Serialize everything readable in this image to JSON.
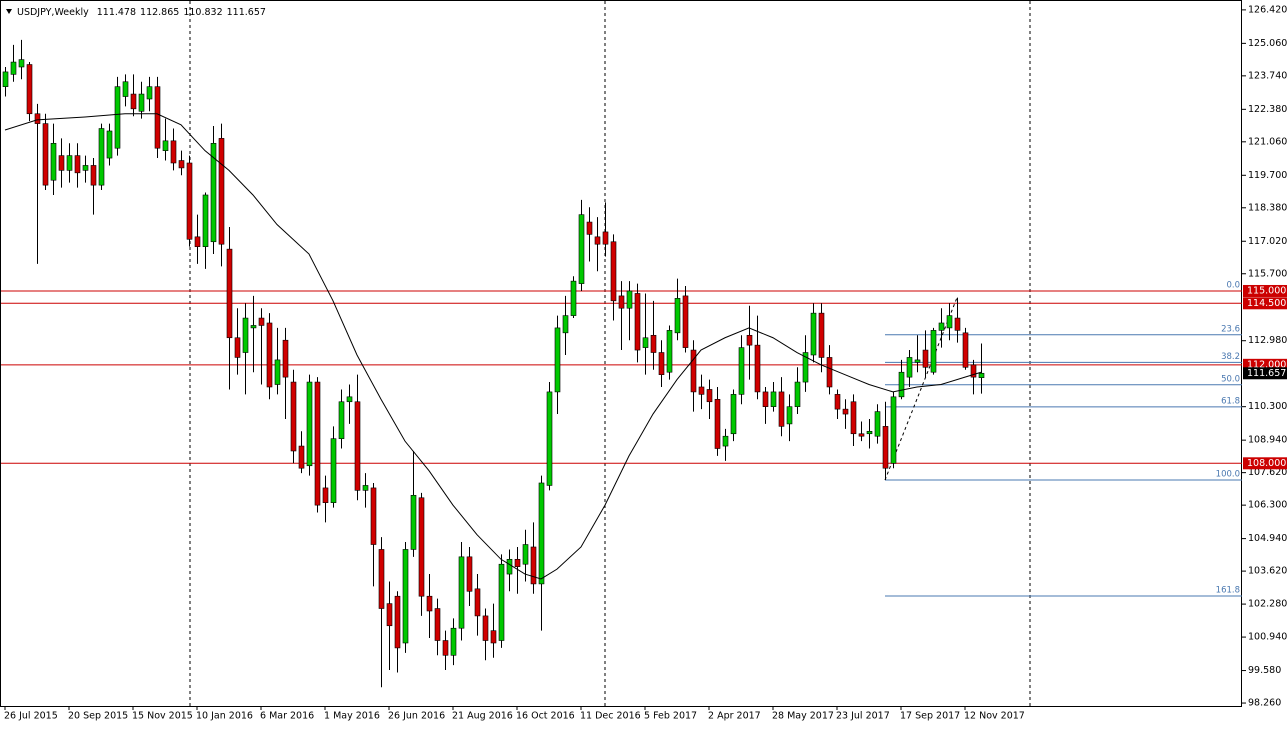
{
  "chart_data": {
    "type": "candlestick",
    "title": "USDJPY,Weekly",
    "categories": [
      "26 Jul 2015",
      null,
      null,
      null,
      null,
      null,
      null,
      null,
      "20 Sep 2015",
      null,
      null,
      null,
      null,
      null,
      null,
      null,
      "15 Nov 2015",
      null,
      null,
      null,
      null,
      null,
      null,
      null,
      "10 Jan 2016",
      null,
      null,
      null,
      null,
      null,
      null,
      null,
      "6 Mar 2016",
      null,
      null,
      null,
      null,
      null,
      null,
      null,
      "1 May 2016",
      null,
      null,
      null,
      null,
      null,
      null,
      null,
      "26 Jun 2016",
      null,
      null,
      null,
      null,
      null,
      null,
      null,
      "21 Aug 2016",
      null,
      null,
      null,
      null,
      null,
      null,
      null,
      "16 Oct 2016",
      null,
      null,
      null,
      null,
      null,
      null,
      null,
      "11 Dec 2016",
      null,
      null,
      null,
      null,
      null,
      null,
      null,
      "5 Feb 2017",
      null,
      null,
      null,
      null,
      null,
      null,
      null,
      "2 Apr 2017",
      null,
      null,
      null,
      null,
      null,
      null,
      null,
      "28 May 2017",
      null,
      null,
      null,
      null,
      null,
      null,
      null,
      "23 Jul 2017",
      null,
      null,
      null,
      null,
      null,
      null,
      null,
      "17 Sep 2017",
      null,
      null,
      null,
      null,
      null,
      null,
      null,
      "12 Nov 2017",
      null,
      null
    ],
    "open": [
      123.3,
      123.8,
      124.1,
      124.2,
      122.2,
      121.8,
      119.5,
      120.5,
      119.9,
      120.5,
      119.9,
      120.1,
      119.3,
      120.4,
      120.8,
      122.9,
      123.0,
      122.3,
      122.8,
      123.3,
      120.7,
      121.1,
      120.3,
      120.2,
      117.2,
      116.8,
      117.0,
      121.2,
      116.7,
      113.1,
      112.5,
      113.5,
      113.9,
      113.7,
      111.2,
      113.0,
      111.3,
      108.7,
      107.9,
      111.3,
      107.0,
      106.4,
      109.0,
      110.5,
      110.5,
      106.9,
      107.0,
      104.5,
      102.3,
      102.6,
      100.7,
      104.5,
      106.6,
      102.6,
      102.1,
      100.8,
      100.2,
      101.3,
      104.2,
      102.9,
      101.8,
      101.2,
      100.8,
      103.5,
      104.1,
      103.9,
      104.6,
      103.1,
      107.1,
      110.9,
      113.3,
      114.0,
      115.3,
      117.8,
      117.2,
      117.4,
      117.0,
      114.8,
      114.3,
      114.9,
      112.7,
      113.2,
      112.5,
      111.7,
      113.3,
      114.8,
      112.6,
      111.1,
      111.0,
      110.6,
      108.7,
      109.2,
      110.8,
      113.2,
      112.8,
      110.9,
      110.3,
      110.9,
      109.6,
      110.3,
      111.3,
      112.4,
      114.1,
      112.3,
      110.8,
      110.2,
      110.5,
      109.2,
      109.2,
      109.1,
      109.5,
      108.0,
      110.7,
      111.5,
      112.1,
      112.6,
      111.7,
      113.4,
      113.5,
      113.9,
      113.3,
      112.0,
      111.478
    ],
    "high": [
      124.1,
      125.0,
      125.2,
      124.3,
      122.6,
      122.2,
      121.8,
      121.2,
      121.0,
      121.0,
      120.5,
      120.4,
      121.8,
      121.8,
      123.7,
      123.8,
      123.8,
      123.5,
      123.7,
      123.7,
      122.0,
      121.6,
      120.7,
      120.5,
      118.1,
      119.0,
      121.7,
      121.8,
      117.6,
      114.3,
      114.5,
      114.8,
      114.3,
      114.1,
      113.5,
      113.5,
      111.8,
      109.3,
      111.6,
      111.5,
      107.5,
      109.5,
      111.0,
      111.2,
      111.6,
      107.6,
      107.2,
      105.0,
      103.2,
      102.8,
      104.8,
      108.5,
      106.8,
      103.5,
      102.5,
      101.2,
      101.7,
      104.8,
      104.6,
      103.5,
      102.1,
      102.3,
      104.3,
      104.5,
      104.6,
      105.3,
      105.6,
      107.5,
      111.3,
      114.0,
      114.8,
      115.6,
      118.7,
      118.4,
      118.0,
      118.6,
      117.3,
      115.4,
      115.4,
      115.3,
      114.9,
      114.6,
      113.0,
      113.6,
      115.5,
      115.2,
      113.0,
      111.6,
      111.4,
      111.1,
      109.4,
      111.0,
      113.2,
      114.4,
      114.0,
      111.1,
      111.3,
      111.5,
      110.8,
      111.9,
      113.2,
      114.5,
      114.5,
      112.8,
      111.0,
      110.6,
      110.8,
      109.7,
      109.8,
      110.4,
      110.5,
      110.9,
      112.2,
      112.6,
      113.2,
      113.4,
      113.5,
      114.3,
      114.5,
      114.73,
      113.5,
      112.2,
      112.865
    ],
    "low": [
      122.9,
      123.5,
      123.6,
      121.9,
      116.1,
      119.1,
      118.9,
      119.2,
      119.4,
      119.2,
      119.4,
      118.1,
      119.1,
      120.1,
      120.5,
      122.5,
      122.1,
      122.0,
      122.3,
      120.4,
      120.3,
      119.9,
      119.7,
      116.8,
      116.1,
      115.9,
      116.5,
      116.0,
      111.0,
      111.6,
      110.8,
      111.7,
      111.2,
      110.6,
      110.8,
      109.8,
      108.0,
      107.6,
      107.5,
      106.0,
      105.6,
      106.2,
      108.6,
      109.6,
      106.5,
      106.2,
      103.0,
      98.9,
      99.6,
      99.5,
      100.3,
      104.2,
      101.8,
      100.9,
      100.2,
      99.6,
      99.8,
      100.8,
      102.2,
      101.0,
      100.0,
      100.1,
      100.5,
      102.8,
      102.7,
      103.2,
      102.7,
      101.2,
      106.9,
      110.0,
      112.4,
      113.9,
      115.0,
      116.2,
      115.8,
      116.4,
      113.8,
      112.6,
      113.0,
      112.1,
      111.6,
      111.8,
      111.1,
      111.4,
      113.0,
      112.5,
      110.1,
      110.2,
      109.8,
      108.3,
      108.1,
      108.9,
      110.4,
      111.4,
      110.6,
      109.6,
      110.1,
      109.1,
      108.9,
      110.0,
      110.9,
      112.1,
      111.7,
      110.8,
      109.8,
      109.4,
      108.7,
      108.9,
      108.6,
      108.8,
      107.32,
      107.8,
      110.6,
      111.1,
      111.7,
      111.5,
      111.6,
      112.7,
      113.0,
      112.9,
      111.8,
      110.8,
      110.832
    ],
    "close": [
      123.9,
      124.3,
      124.4,
      122.2,
      121.8,
      119.3,
      121.0,
      119.9,
      120.5,
      119.8,
      120.1,
      119.3,
      121.6,
      121.5,
      123.3,
      123.5,
      122.4,
      123.0,
      123.3,
      120.8,
      121.1,
      120.2,
      120.0,
      117.1,
      116.8,
      118.9,
      121.0,
      116.9,
      113.1,
      112.3,
      113.9,
      113.6,
      113.6,
      111.1,
      112.2,
      111.5,
      108.5,
      107.8,
      111.3,
      106.3,
      106.4,
      109.0,
      110.5,
      110.7,
      106.9,
      107.1,
      104.7,
      102.1,
      101.4,
      100.5,
      104.5,
      106.7,
      102.6,
      102.0,
      100.8,
      100.2,
      101.3,
      104.2,
      102.8,
      101.8,
      100.8,
      100.7,
      103.9,
      104.1,
      103.8,
      104.7,
      103.1,
      107.2,
      110.9,
      113.5,
      114.0,
      115.4,
      118.1,
      117.3,
      116.9,
      116.9,
      114.6,
      114.3,
      115.0,
      112.6,
      113.1,
      112.5,
      111.6,
      113.4,
      114.7,
      112.7,
      110.9,
      110.8,
      110.5,
      108.6,
      109.1,
      110.8,
      112.7,
      112.8,
      110.9,
      110.3,
      110.9,
      109.5,
      110.3,
      111.3,
      112.5,
      114.1,
      112.3,
      111.1,
      110.2,
      110.0,
      109.2,
      109.1,
      109.3,
      110.1,
      107.8,
      110.7,
      111.7,
      112.3,
      112.2,
      111.9,
      113.4,
      113.7,
      114.0,
      113.4,
      111.9,
      111.5,
      111.657
    ],
    "up_color": "#00c800",
    "down_color": "#d00000",
    "moving_average": {
      "color": "#000000",
      "x": [
        0,
        4,
        10,
        15,
        19,
        22,
        25,
        28,
        31,
        34,
        38,
        41,
        44,
        47,
        50,
        53,
        56,
        59,
        62,
        65,
        67,
        69,
        72,
        75,
        78,
        81,
        84,
        87,
        90,
        93,
        96,
        99,
        102,
        105,
        108,
        111,
        114,
        117,
        120,
        122
      ],
      "values": [
        121.54,
        121.95,
        122.07,
        122.2,
        122.2,
        121.75,
        120.7,
        119.9,
        118.9,
        117.7,
        116.5,
        114.6,
        112.4,
        110.6,
        108.9,
        107.7,
        106.3,
        105.1,
        104.1,
        103.5,
        103.3,
        103.7,
        104.6,
        106.3,
        108.3,
        110.0,
        111.4,
        112.6,
        113.1,
        113.5,
        113.1,
        112.5,
        112.0,
        111.6,
        111.2,
        110.9,
        111.1,
        111.2,
        111.5,
        111.7
      ]
    },
    "price_lines": [
      {
        "value": 115.0,
        "label": "115.000"
      },
      {
        "value": 114.5,
        "label": "114.500"
      },
      {
        "value": 112.0,
        "label": "112.000"
      },
      {
        "value": 108.0,
        "label": "108.000"
      }
    ],
    "price_line_color": "#cc0000",
    "fib_color": "#4a78b0",
    "fib_levels": [
      {
        "label": "0.0",
        "price": 115.0
      },
      {
        "label": "23.6",
        "price": 113.22
      },
      {
        "label": "38.2",
        "price": 112.1
      },
      {
        "label": "50.0",
        "price": 111.19
      },
      {
        "label": "61.8",
        "price": 110.29
      },
      {
        "label": "100.0",
        "price": 107.32
      },
      {
        "label": "161.8",
        "price": 102.61
      }
    ],
    "ylim": [
      98.14,
      126.74
    ],
    "yticks": [
      {
        "value": 126.42,
        "label": "126.420"
      },
      {
        "value": 125.06,
        "label": "125.060"
      },
      {
        "value": 123.74,
        "label": "123.740"
      },
      {
        "value": 122.38,
        "label": "122.380"
      },
      {
        "value": 121.06,
        "label": "121.060"
      },
      {
        "value": 119.7,
        "label": "119.700"
      },
      {
        "value": 118.38,
        "label": "118.380"
      },
      {
        "value": 117.02,
        "label": "117.020"
      },
      {
        "value": 115.7,
        "label": "115.700"
      },
      {
        "value": 112.98,
        "label": "112.980"
      },
      {
        "value": 110.3,
        "label": "110.300"
      },
      {
        "value": 108.94,
        "label": "108.940"
      },
      {
        "value": 107.62,
        "label": "107.620"
      },
      {
        "value": 106.3,
        "label": "106.300"
      },
      {
        "value": 104.94,
        "label": "104.940"
      },
      {
        "value": 103.62,
        "label": "103.620"
      },
      {
        "value": 102.28,
        "label": "102.280"
      },
      {
        "value": 100.94,
        "label": "100.940"
      },
      {
        "value": 99.58,
        "label": "99.580"
      },
      {
        "value": 98.26,
        "label": "98.260"
      }
    ]
  }
}
